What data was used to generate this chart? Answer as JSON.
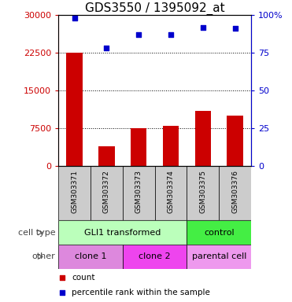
{
  "title": "GDS3550 / 1395092_at",
  "samples": [
    "GSM303371",
    "GSM303372",
    "GSM303373",
    "GSM303374",
    "GSM303375",
    "GSM303376"
  ],
  "counts": [
    22500,
    4000,
    7500,
    8000,
    11000,
    10000
  ],
  "percentile_ranks": [
    98,
    78,
    87,
    87,
    92,
    91
  ],
  "ylim_left": [
    0,
    30000
  ],
  "ylim_right": [
    0,
    100
  ],
  "yticks_left": [
    0,
    7500,
    15000,
    22500,
    30000
  ],
  "ytick_labels_left": [
    "0",
    "7500",
    "15000",
    "22500",
    "30000"
  ],
  "yticks_right": [
    0,
    25,
    50,
    75,
    100
  ],
  "ytick_labels_right": [
    "0",
    "25",
    "50",
    "75",
    "100%"
  ],
  "bar_color": "#cc0000",
  "dot_color": "#0000cc",
  "cell_type_labels": [
    {
      "label": "GLI1 transformed",
      "start": 0,
      "end": 4,
      "color": "#bbffbb"
    },
    {
      "label": "control",
      "start": 4,
      "end": 6,
      "color": "#44ee44"
    }
  ],
  "other_labels": [
    {
      "label": "clone 1",
      "start": 0,
      "end": 2,
      "color": "#dd88dd"
    },
    {
      "label": "clone 2",
      "start": 2,
      "end": 4,
      "color": "#ee44ee"
    },
    {
      "label": "parental cell",
      "start": 4,
      "end": 6,
      "color": "#ee99ee"
    }
  ],
  "row_label_cell_type": "cell type",
  "row_label_other": "other",
  "legend_count_label": "count",
  "legend_pct_label": "percentile rank within the sample",
  "tick_label_area_bg": "#cccccc",
  "plot_bg": "#ffffff",
  "title_fontsize": 11,
  "tick_fontsize": 8,
  "label_fontsize": 8,
  "row_label_fontsize": 8
}
